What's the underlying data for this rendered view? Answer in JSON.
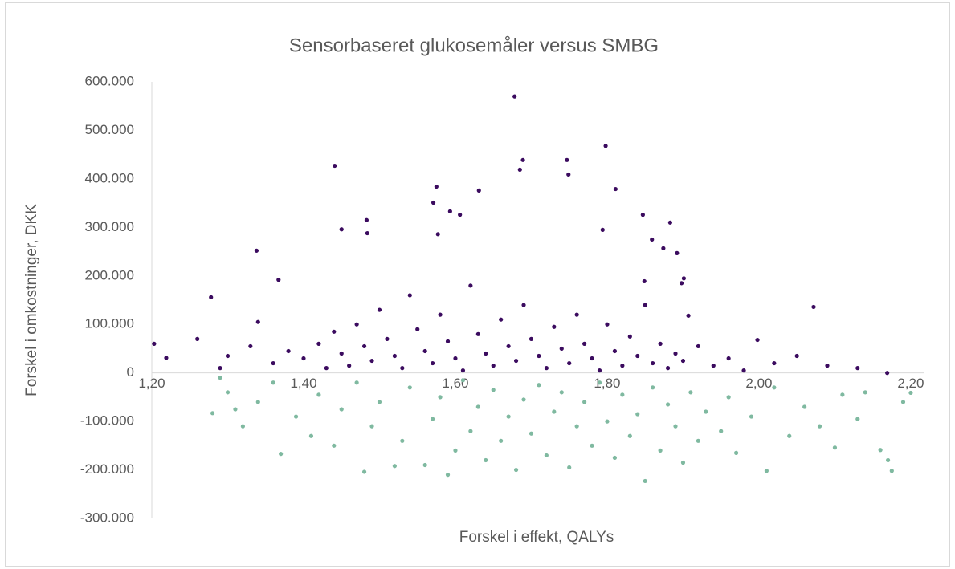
{
  "chart_data": {
    "type": "scatter",
    "title": "Sensorbaseret glukosemåler versus SMBG",
    "x_label": "Forskel i effekt, QALYs",
    "y_label": "Forskel i omkostninger, DKK",
    "xlim": [
      1.2,
      2.217
    ],
    "ylim": [
      -300000,
      600000
    ],
    "xticks": [
      {
        "value": 1.2,
        "label": "1,20"
      },
      {
        "value": 1.4,
        "label": "1,40"
      },
      {
        "value": 1.6,
        "label": "1,60"
      },
      {
        "value": 1.8,
        "label": "1,80"
      },
      {
        "value": 2.0,
        "label": "2,00"
      },
      {
        "value": 2.2,
        "label": "2,20"
      }
    ],
    "yticks": [
      {
        "value": 600000,
        "label": "600.000"
      },
      {
        "value": 500000,
        "label": "500.000"
      },
      {
        "value": 400000,
        "label": "400.000"
      },
      {
        "value": 300000,
        "label": "300.000"
      },
      {
        "value": 200000,
        "label": "200.000"
      },
      {
        "value": 100000,
        "label": "100.000"
      },
      0,
      {
        "value": -100000,
        "label": "-100.000"
      },
      {
        "value": -200000,
        "label": "-200.000"
      },
      {
        "value": -300000,
        "label": "-300.000"
      }
    ],
    "grid": false,
    "series": [
      {
        "color": "#3b0b5f",
        "x": [
          1.678,
          1.441,
          1.798,
          1.689,
          1.747,
          1.685,
          1.749,
          1.575,
          1.811,
          1.631,
          1.571,
          1.593,
          1.606,
          1.847,
          1.483,
          1.883,
          1.45,
          1.484,
          1.577,
          1.794,
          1.859,
          1.874,
          1.338,
          1.892,
          1.901,
          1.898,
          1.849,
          2.072,
          1.907,
          1.278,
          1.367,
          1.203,
          1.219,
          2.169,
          1.998,
          1.36,
          1.38,
          1.4,
          1.42,
          1.43,
          1.44,
          1.45,
          1.46,
          1.47,
          1.48,
          1.49,
          1.5,
          1.51,
          1.52,
          1.53,
          1.54,
          1.55,
          1.56,
          1.57,
          1.58,
          1.59,
          1.6,
          1.61,
          1.62,
          1.63,
          1.64,
          1.65,
          1.66,
          1.67,
          1.68,
          1.69,
          1.7,
          1.71,
          1.72,
          1.73,
          1.74,
          1.75,
          1.76,
          1.77,
          1.78,
          1.79,
          1.8,
          1.81,
          1.82,
          1.83,
          1.84,
          1.85,
          1.86,
          1.87,
          1.88,
          1.89,
          1.9,
          1.92,
          1.94,
          1.96,
          1.98,
          2.02,
          2.05,
          2.09,
          2.13,
          1.3,
          1.33,
          1.26,
          1.29,
          1.34
        ],
        "values": [
          570000,
          427000,
          468000,
          439000,
          439000,
          419000,
          409000,
          384000,
          379000,
          376000,
          351000,
          333000,
          326000,
          326000,
          315000,
          310000,
          296000,
          288000,
          286000,
          295000,
          275000,
          257000,
          252000,
          247000,
          195000,
          185000,
          189000,
          136000,
          118000,
          156000,
          192000,
          60000,
          31000,
          0,
          68000,
          20000,
          45000,
          30000,
          60000,
          10000,
          85000,
          40000,
          15000,
          100000,
          55000,
          25000,
          130000,
          70000,
          35000,
          10000,
          160000,
          90000,
          45000,
          20000,
          120000,
          65000,
          30000,
          5000,
          180000,
          80000,
          40000,
          15000,
          110000,
          55000,
          25000,
          140000,
          70000,
          35000,
          10000,
          95000,
          50000,
          20000,
          120000,
          60000,
          30000,
          5000,
          100000,
          45000,
          15000,
          75000,
          35000,
          140000,
          20000,
          60000,
          10000,
          40000,
          25000,
          55000,
          15000,
          30000,
          5000,
          20000,
          35000,
          15000,
          10000,
          35000,
          55000,
          70000,
          10000,
          105000
        ]
      },
      {
        "color": "#7fb9a0",
        "x": [
          1.28,
          1.3,
          1.32,
          1.34,
          1.37,
          1.36,
          1.39,
          1.41,
          1.42,
          1.44,
          1.45,
          1.47,
          1.48,
          1.49,
          1.5,
          1.52,
          1.53,
          1.54,
          1.56,
          1.57,
          1.58,
          1.59,
          1.6,
          1.61,
          1.62,
          1.63,
          1.64,
          1.65,
          1.66,
          1.67,
          1.68,
          1.69,
          1.7,
          1.71,
          1.72,
          1.73,
          1.74,
          1.75,
          1.76,
          1.77,
          1.78,
          1.79,
          1.8,
          1.81,
          1.82,
          1.83,
          1.85,
          1.84,
          1.86,
          1.87,
          1.88,
          1.89,
          1.9,
          1.91,
          1.92,
          1.93,
          1.95,
          1.96,
          1.97,
          1.99,
          2.01,
          2.02,
          2.04,
          2.06,
          2.08,
          2.1,
          2.11,
          2.13,
          2.16,
          2.175,
          2.17,
          2.2,
          2.19,
          2.14,
          1.29,
          1.31
        ],
        "values": [
          -83000,
          -40000,
          -110000,
          -60000,
          -167000,
          -20000,
          -90000,
          -130000,
          -45000,
          -150000,
          -75000,
          -20000,
          -204000,
          -110000,
          -60000,
          -192000,
          -140000,
          -30000,
          -190000,
          -95000,
          -50000,
          -210000,
          -160000,
          -15000,
          -120000,
          -70000,
          -180000,
          -35000,
          -140000,
          -90000,
          -200000,
          -55000,
          -125000,
          -25000,
          -170000,
          -80000,
          -40000,
          -195000,
          -110000,
          -60000,
          -150000,
          -20000,
          -100000,
          -175000,
          -45000,
          -130000,
          -223000,
          -85000,
          -30000,
          -160000,
          -65000,
          -110000,
          -185000,
          -40000,
          -140000,
          -80000,
          -120000,
          -50000,
          -165000,
          -90000,
          -202000,
          -30000,
          -130000,
          -70000,
          -110000,
          -154000,
          -45000,
          -95000,
          -159000,
          -202000,
          -180000,
          -41000,
          -60000,
          -40000,
          -10000,
          -75000
        ]
      }
    ]
  }
}
